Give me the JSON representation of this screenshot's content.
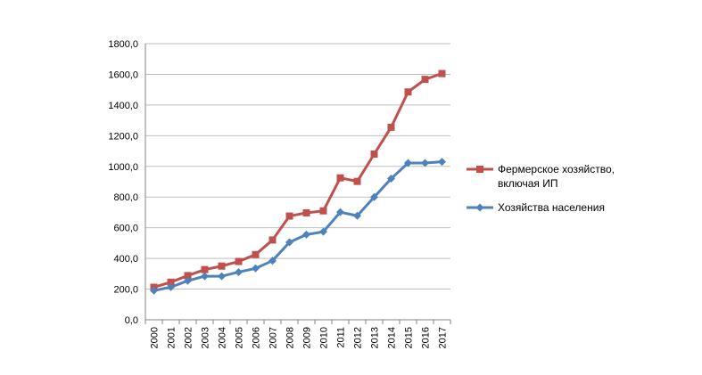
{
  "chart_data": {
    "type": "line",
    "title": "",
    "xlabel": "",
    "ylabel": "",
    "ylim": [
      0,
      1800
    ],
    "y_ticks": [
      "0,0",
      "200,0",
      "400,0",
      "600,0",
      "800,0",
      "1000,0",
      "1200,0",
      "1400,0",
      "1600,0",
      "1800,0"
    ],
    "y_tick_values": [
      0,
      200,
      400,
      600,
      800,
      1000,
      1200,
      1400,
      1600,
      1800
    ],
    "categories": [
      "2000",
      "2001",
      "2002",
      "2003",
      "2004",
      "2005",
      "2006",
      "2007",
      "2008",
      "2009",
      "2010",
      "2011",
      "2012",
      "2013",
      "2014",
      "2015",
      "2016",
      "2017"
    ],
    "grid": "horizontal",
    "legend_position": "right",
    "series": [
      {
        "name": "Фермерское хозяйство, включая ИП",
        "legend_lines": [
          "Фермерское хозяйство,",
          "включая ИП"
        ],
        "color": "#c0504d",
        "marker": "square",
        "values": [
          212,
          245,
          288,
          327,
          350,
          380,
          425,
          520,
          676,
          697,
          710,
          925,
          902,
          1080,
          1255,
          1485,
          1567,
          1605
        ]
      },
      {
        "name": "Хозяйства населения",
        "legend_lines": [
          "Хозяйства населения"
        ],
        "color": "#4f81bd",
        "marker": "diamond",
        "values": [
          190,
          213,
          254,
          284,
          284,
          311,
          335,
          385,
          505,
          555,
          574,
          702,
          678,
          800,
          920,
          1022,
          1022,
          1030
        ]
      }
    ]
  }
}
